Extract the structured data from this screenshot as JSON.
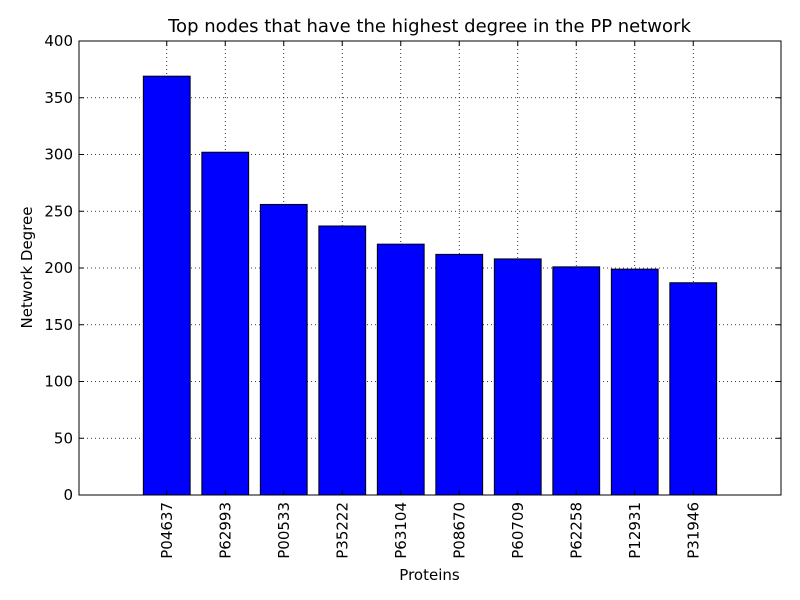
{
  "chart_data": {
    "type": "bar",
    "title": "Top nodes that have the highest degree in the PP network",
    "xlabel": "Proteins",
    "ylabel": "Network Degree",
    "categories": [
      "P04637",
      "P62993",
      "P00533",
      "P35222",
      "P63104",
      "P08670",
      "P60709",
      "P62258",
      "P12931",
      "P31946"
    ],
    "values": [
      369,
      302,
      256,
      237,
      221,
      212,
      208,
      201,
      199,
      187
    ],
    "ylim": [
      0,
      400
    ],
    "yticks": [
      0,
      50,
      100,
      150,
      200,
      250,
      300,
      350,
      400
    ],
    "xlim": [
      -1.5,
      10.5
    ],
    "grid": true,
    "bar_color": "#0000ff"
  }
}
